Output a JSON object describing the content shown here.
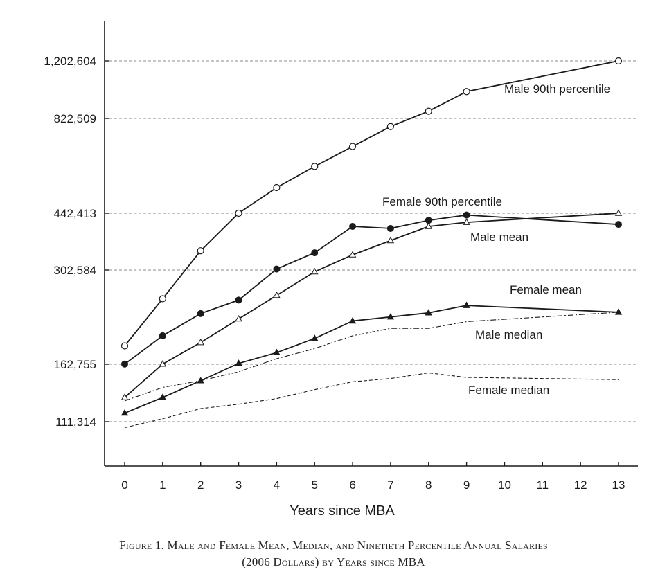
{
  "chart_data": {
    "type": "line",
    "xlabel": "Years since MBA",
    "x": [
      0,
      1,
      2,
      3,
      4,
      5,
      6,
      7,
      8,
      9,
      13
    ],
    "x_ticks": [
      0,
      1,
      2,
      3,
      4,
      5,
      6,
      7,
      8,
      9,
      10,
      11,
      12,
      13
    ],
    "y_ticks": [
      111314,
      162755,
      302584,
      442413,
      822509,
      1202604
    ],
    "y_tick_labels": [
      "111,314",
      "162,755",
      "302,584",
      "442,413",
      "822,509",
      "1,202,604"
    ],
    "grid": "dashed horizontal lines at y ticks",
    "series": [
      {
        "name": "Male 90th percentile",
        "marker": "open-circle",
        "line": "solid",
        "values": [
          190000,
          260000,
          350000,
          442413,
          545000,
          630000,
          710000,
          790000,
          870000,
          1000000,
          1202604
        ]
      },
      {
        "name": "Female 90th percentile",
        "marker": "open-triangle",
        "line": "solid",
        "values": [
          133000,
          163000,
          195000,
          230000,
          265000,
          300000,
          340000,
          375000,
          410000,
          420000,
          442413
        ]
      },
      {
        "name": "Male mean",
        "marker": "filled-circle",
        "line": "solid",
        "values": [
          163000,
          205000,
          238000,
          258000,
          305000,
          345000,
          410000,
          405000,
          425000,
          438000,
          415000
        ]
      },
      {
        "name": "Female mean",
        "marker": "filled-triangle",
        "line": "solid",
        "values": [
          119000,
          133000,
          148000,
          164000,
          180000,
          201000,
          227000,
          233000,
          239000,
          250000,
          240000
        ]
      },
      {
        "name": "Male median",
        "marker": "none",
        "line": "dash-dot",
        "values": [
          130000,
          142000,
          148000,
          156000,
          171000,
          186000,
          205000,
          216000,
          216000,
          226000,
          240000
        ]
      },
      {
        "name": "Female median",
        "marker": "none",
        "line": "dashed",
        "values": [
          106000,
          114000,
          123000,
          127000,
          132000,
          140000,
          147000,
          150000,
          155000,
          151000,
          149000
        ]
      }
    ]
  },
  "caption": {
    "line1": "Figure 1. Male and Female Mean, Median, and Ninetieth Percentile Annual Salaries",
    "line2": "(2006 Dollars) by Years since MBA"
  }
}
